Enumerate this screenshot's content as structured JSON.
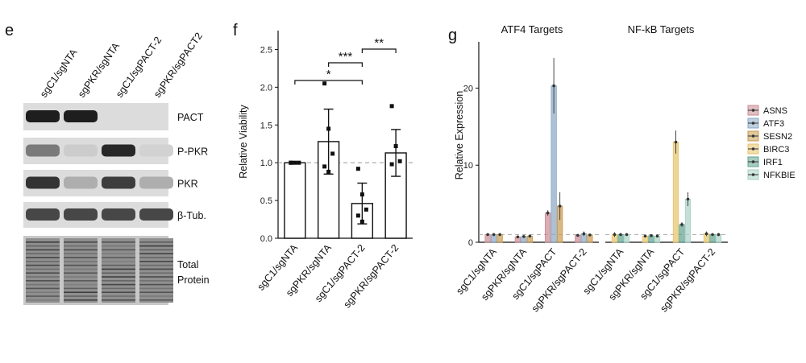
{
  "panels": {
    "e": {
      "letter": "e"
    },
    "f": {
      "letter": "f"
    },
    "g": {
      "letter": "g"
    }
  },
  "blot": {
    "lanes": [
      "sgC1/sgNTA",
      "sgPKR/sgNTA",
      "sgC1/sgPACT-2",
      "sgPKR/sgPACT2"
    ],
    "bands": [
      {
        "label": "PACT",
        "intensity": [
          1.0,
          1.0,
          0.0,
          0.0
        ]
      },
      {
        "label": "P-PKR",
        "intensity": [
          0.55,
          0.15,
          0.95,
          0.12
        ]
      },
      {
        "label": "PKR",
        "intensity": [
          0.9,
          0.3,
          0.85,
          0.3
        ]
      },
      {
        "label": "β-Tub.",
        "intensity": [
          0.8,
          0.8,
          0.8,
          0.8
        ]
      }
    ],
    "total_label_1": "Total",
    "total_label_2": "Protein"
  },
  "chart_data": [
    {
      "panel": "f",
      "type": "bar",
      "ylabel": "Relative Viability",
      "categories": [
        "sgC1/sgNTA",
        "sgPKR/sgNTA",
        "sgC1/sgPACT-2",
        "sgPKR/sgPACT-2"
      ],
      "values": [
        1.0,
        1.28,
        0.46,
        1.13
      ],
      "errors": [
        0.0,
        0.43,
        0.27,
        0.31
      ],
      "points": [
        [
          1.0,
          1.0,
          1.0,
          1.0
        ],
        [
          2.05,
          1.45,
          1.12,
          0.95,
          0.88
        ],
        [
          0.92,
          0.58,
          0.38,
          0.3,
          0.22
        ],
        [
          1.75,
          1.22,
          1.02,
          0.98
        ]
      ],
      "ylim": [
        0,
        2.75
      ],
      "yticks": [
        0.0,
        0.5,
        1.0,
        1.5,
        2.0,
        2.5
      ],
      "ytick_labels": [
        "0.0",
        "0.5",
        "1.0",
        "1.5",
        "2.0",
        "2.5"
      ],
      "reference_line": 1.0,
      "significance": [
        {
          "from": 0,
          "to": 2,
          "label": "*"
        },
        {
          "from": 1,
          "to": 2,
          "label": "***"
        },
        {
          "from": 2,
          "to": 3,
          "label": "**"
        }
      ]
    },
    {
      "panel": "g",
      "type": "bar",
      "ylabel": "Relative Expression",
      "facets": [
        "ATF4 Targets",
        "NF-kB Targets"
      ],
      "categories": [
        "sgC1/sgNTA",
        "sgPKR/sgNTA",
        "sgC1/sgPACT",
        "sgPKR/sgPACT-2"
      ],
      "ylim": [
        0,
        26
      ],
      "yticks": [
        0,
        10,
        20
      ],
      "ytick_labels": [
        "0",
        "10",
        "20"
      ],
      "reference_line": 1.0,
      "legend_position": "right",
      "series": [
        {
          "name": "ASNS",
          "facet": 0,
          "color": "#c98a93",
          "values": [
            1.0,
            0.7,
            3.8,
            0.9
          ],
          "errors": [
            0.15,
            0.1,
            0.35,
            0.1
          ]
        },
        {
          "name": "ATF3",
          "facet": 0,
          "color": "#8aa7c4",
          "values": [
            1.0,
            0.75,
            20.3,
            1.1
          ],
          "errors": [
            0.2,
            0.15,
            3.6,
            0.3
          ]
        },
        {
          "name": "SESN2",
          "facet": 0,
          "color": "#c99a4e",
          "values": [
            1.0,
            0.8,
            4.7,
            0.95
          ],
          "errors": [
            0.15,
            0.12,
            1.8,
            0.15
          ]
        },
        {
          "name": "BIRC3",
          "facet": 1,
          "color": "#e6c36a",
          "values": [
            1.0,
            0.8,
            13.0,
            1.1
          ],
          "errors": [
            0.3,
            0.15,
            1.5,
            0.3
          ]
        },
        {
          "name": "IRF1",
          "facet": 1,
          "color": "#5fa38f",
          "values": [
            1.0,
            0.85,
            2.3,
            1.0
          ],
          "errors": [
            0.15,
            0.1,
            0.3,
            0.15
          ]
        },
        {
          "name": "NFKBIE",
          "facet": 1,
          "color": "#a9d2c6",
          "values": [
            1.0,
            0.8,
            5.6,
            1.0
          ],
          "errors": [
            0.15,
            0.1,
            0.9,
            0.2
          ]
        }
      ]
    }
  ]
}
